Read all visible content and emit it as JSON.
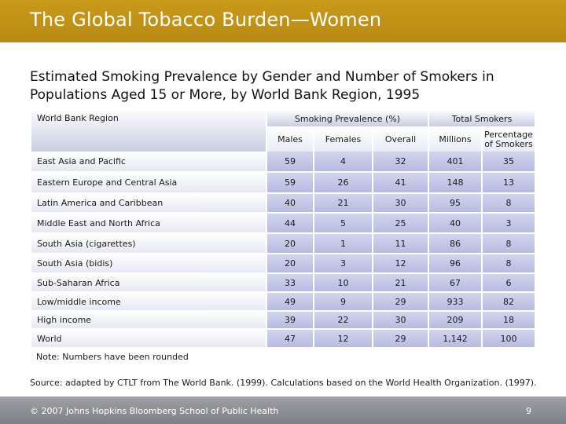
{
  "slide": {
    "title": "The Global Tobacco Burden—Women",
    "subtitle": "Estimated Smoking Prevalence by Gender and Number of Smokers in Populations Aged 15 or More, by World Bank Region, 1995"
  },
  "table": {
    "header": {
      "region": "World Bank Region",
      "prevalence_group": "Smoking Prevalence (%)",
      "smokers_group": "Total Smokers",
      "columns": [
        "Males",
        "Females",
        "Overall",
        "Millions",
        "Percentage of Smokers"
      ]
    },
    "rows": [
      {
        "region": "East Asia and Pacific",
        "values": [
          "59",
          "4",
          "32",
          "401",
          "35"
        ]
      },
      {
        "region": "Eastern Europe and Central Asia",
        "values": [
          "59",
          "26",
          "41",
          "148",
          "13"
        ]
      },
      {
        "region": "Latin America and Caribbean",
        "values": [
          "40",
          "21",
          "30",
          "95",
          "8"
        ]
      },
      {
        "region": "Middle East and North Africa",
        "values": [
          "44",
          "5",
          "25",
          "40",
          "3"
        ]
      },
      {
        "region": "South Asia (cigarettes)",
        "values": [
          "20",
          "1",
          "11",
          "86",
          "8"
        ]
      },
      {
        "region": "South Asia (bidis)",
        "values": [
          "20",
          "3",
          "12",
          "96",
          "8"
        ]
      },
      {
        "region": "Sub-Saharan Africa",
        "values": [
          "33",
          "10",
          "21",
          "67",
          "6"
        ]
      },
      {
        "region": "Low/middle income",
        "values": [
          "49",
          "9",
          "29",
          "933",
          "82"
        ]
      },
      {
        "region": "High income",
        "values": [
          "39",
          "22",
          "30",
          "209",
          "18"
        ]
      },
      {
        "region": "World",
        "values": [
          "47",
          "12",
          "29",
          "1,142",
          "100"
        ]
      }
    ]
  },
  "note": "Note: Numbers have been rounded",
  "source": "Source: adapted by CTLT from The World Bank. (1999). Calculations based on the World Health Organization. (1997).",
  "footer": {
    "copyright": "© 2007 Johns Hopkins Bloomberg School of Public Health",
    "page_number": "9"
  }
}
